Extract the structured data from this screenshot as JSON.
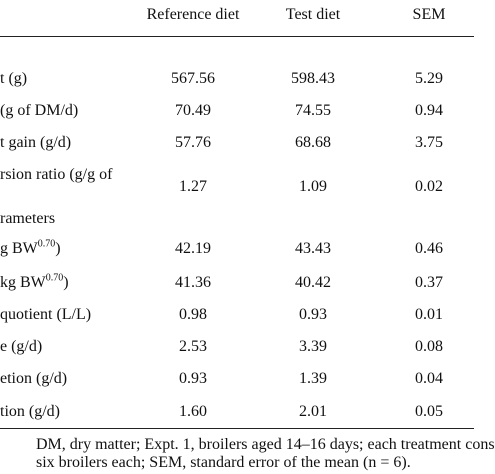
{
  "table": {
    "headers": [
      "Reference diet",
      "Test diet",
      "SEM"
    ],
    "rows": [
      {
        "label": "t (g)",
        "sup": "",
        "label_tail": "",
        "values": [
          "567.56",
          "598.43",
          "5.29"
        ]
      },
      {
        "label": "(g of DM/d)",
        "sup": "",
        "label_tail": "",
        "values": [
          "70.49",
          "74.55",
          "0.94"
        ]
      },
      {
        "label": "t gain (g/d)",
        "sup": "",
        "label_tail": "",
        "values": [
          "57.76",
          "68.68",
          "3.75"
        ]
      },
      {
        "label": "rsion ratio (g/g of",
        "sup": "",
        "label_tail": "",
        "values": [
          "",
          "",
          ""
        ]
      },
      {
        "label": "",
        "sup": "",
        "label_tail": "",
        "values": [
          "1.27",
          "1.09",
          "0.02"
        ]
      },
      {
        "label": "rameters",
        "sup": "",
        "label_tail": "",
        "values": [
          "",
          "",
          ""
        ]
      },
      {
        "label": "g BW",
        "sup": "0.70",
        "label_tail": ")",
        "values": [
          "42.19",
          "43.43",
          "0.46"
        ]
      },
      {
        "label": "kg BW",
        "sup": "0.70",
        "label_tail": ")",
        "values": [
          "41.36",
          "40.42",
          "0.37"
        ]
      },
      {
        "label": "quotient (L/L)",
        "sup": "",
        "label_tail": "",
        "values": [
          "0.98",
          "0.93",
          "0.01"
        ]
      },
      {
        "label": "e (g/d)",
        "sup": "",
        "label_tail": "",
        "values": [
          "2.53",
          "3.39",
          "0.08"
        ]
      },
      {
        "label": "etion (g/d)",
        "sup": "",
        "label_tail": "",
        "values": [
          "0.93",
          "1.39",
          "0.04"
        ]
      },
      {
        "label": "tion (g/d)",
        "sup": "",
        "label_tail": "",
        "values": [
          "1.60",
          "2.01",
          "0.05"
        ]
      }
    ]
  },
  "footnote": {
    "line1": "DM, dry matter; Expt. 1, broilers aged 14–16 days; each treatment cons",
    "line2": "six broilers each; SEM, standard error of the mean (n = 6)."
  }
}
